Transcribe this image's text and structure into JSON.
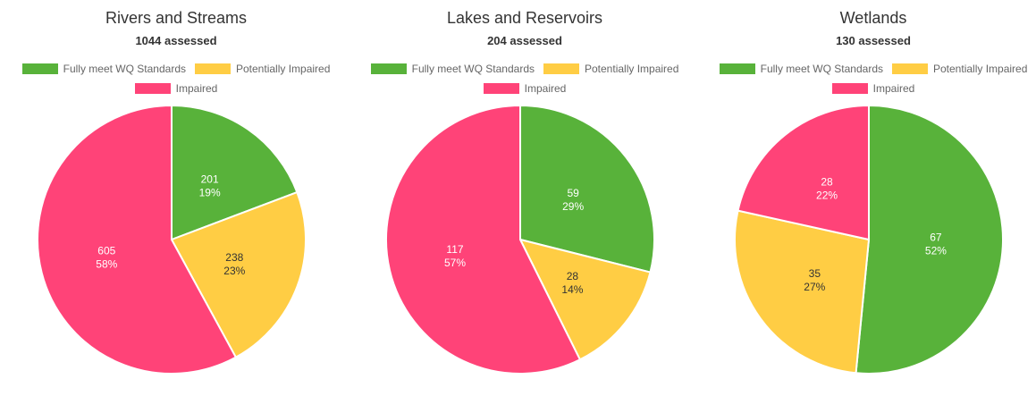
{
  "colors": {
    "fully_meet": "#58B23A",
    "potentially_impaired": "#FFCD44",
    "impaired": "#FF4378"
  },
  "legend": {
    "fully_meet": "Fully meet WQ Standards",
    "potentially_impaired": "Potentially Impaired",
    "impaired": "Impaired"
  },
  "charts": [
    {
      "title": "Rivers and Streams",
      "subtitle": "1044 assessed",
      "slices": [
        {
          "name": "Fully meet WQ Standards",
          "value": 201,
          "pct": "19%"
        },
        {
          "name": "Potentially Impaired",
          "value": 238,
          "pct": "23%"
        },
        {
          "name": "Impaired",
          "value": 605,
          "pct": "58%"
        }
      ]
    },
    {
      "title": "Lakes and Reservoirs",
      "subtitle": "204 assessed",
      "slices": [
        {
          "name": "Fully meet WQ Standards",
          "value": 59,
          "pct": "29%"
        },
        {
          "name": "Potentially Impaired",
          "value": 28,
          "pct": "14%"
        },
        {
          "name": "Impaired",
          "value": 117,
          "pct": "57%"
        }
      ]
    },
    {
      "title": "Wetlands",
      "subtitle": "130 assessed",
      "slices": [
        {
          "name": "Fully meet WQ Standards",
          "value": 67,
          "pct": "52%"
        },
        {
          "name": "Potentially Impaired",
          "value": 35,
          "pct": "27%"
        },
        {
          "name": "Impaired",
          "value": 28,
          "pct": "22%"
        }
      ]
    }
  ],
  "chart_data": [
    {
      "type": "pie",
      "title": "Rivers and Streams",
      "subtitle": "1044 assessed",
      "categories": [
        "Fully meet WQ Standards",
        "Potentially Impaired",
        "Impaired"
      ],
      "values": [
        201,
        238,
        605
      ],
      "percentages": [
        19,
        23,
        58
      ],
      "colors": [
        "#58B23A",
        "#FFCD44",
        "#FF4378"
      ],
      "legend_position": "top"
    },
    {
      "type": "pie",
      "title": "Lakes and Reservoirs",
      "subtitle": "204 assessed",
      "categories": [
        "Fully meet WQ Standards",
        "Potentially Impaired",
        "Impaired"
      ],
      "values": [
        59,
        28,
        117
      ],
      "percentages": [
        29,
        14,
        57
      ],
      "colors": [
        "#58B23A",
        "#FFCD44",
        "#FF4378"
      ],
      "legend_position": "top"
    },
    {
      "type": "pie",
      "title": "Wetlands",
      "subtitle": "130 assessed",
      "categories": [
        "Fully meet WQ Standards",
        "Potentially Impaired",
        "Impaired"
      ],
      "values": [
        67,
        35,
        28
      ],
      "percentages": [
        52,
        27,
        22
      ],
      "colors": [
        "#58B23A",
        "#FFCD44",
        "#FF4378"
      ],
      "legend_position": "top"
    }
  ]
}
